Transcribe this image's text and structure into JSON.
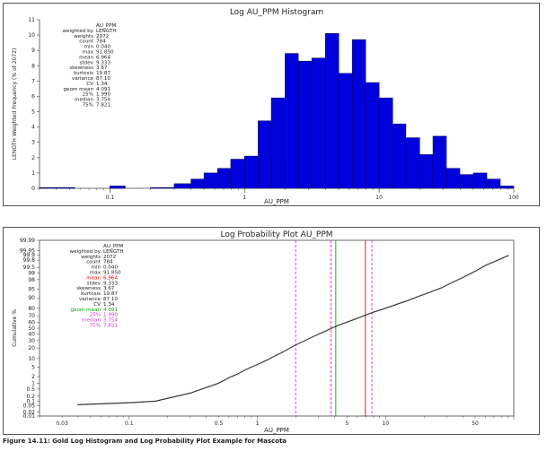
{
  "caption": "Figure 14.11: Gold Log Histogram and Log Probability Plot Example for Mascota",
  "colors": {
    "bar": "#0000dd",
    "bar_edge": "#000055",
    "mean": "#dd0000",
    "geom_mean": "#00aa00",
    "quartile": "#cc33cc",
    "points": "#222222"
  },
  "chart_data": [
    {
      "type": "bar",
      "title": "Log AU_PPM Histogram",
      "xlabel": "AU_PPM",
      "ylabel": "LENGTH Weighted Frequency (% of 2072)",
      "x_scale": "log",
      "xlim": [
        0.03,
        100
      ],
      "ylim": [
        0,
        11
      ],
      "yticks": [
        "0",
        "1",
        "2",
        "3",
        "4",
        "5",
        "6",
        "7",
        "8",
        "9",
        "10",
        "11"
      ],
      "xticks": [
        "0.1",
        "1",
        "10",
        "100"
      ],
      "bins": [
        {
          "lo": 0.03,
          "hi": 0.055,
          "value": 0.05
        },
        {
          "lo": 0.055,
          "hi": 0.1,
          "value": 0.0
        },
        {
          "lo": 0.1,
          "hi": 0.13,
          "value": 0.15
        },
        {
          "lo": 0.13,
          "hi": 0.2,
          "value": 0.0
        },
        {
          "lo": 0.2,
          "hi": 0.3,
          "value": 0.05
        },
        {
          "lo": 0.3,
          "hi": 0.4,
          "value": 0.3
        },
        {
          "lo": 0.4,
          "hi": 0.5,
          "value": 0.6
        },
        {
          "lo": 0.5,
          "hi": 0.63,
          "value": 1.0
        },
        {
          "lo": 0.63,
          "hi": 0.79,
          "value": 1.3
        },
        {
          "lo": 0.79,
          "hi": 1.0,
          "value": 1.9
        },
        {
          "lo": 1.0,
          "hi": 1.26,
          "value": 2.1
        },
        {
          "lo": 1.26,
          "hi": 1.58,
          "value": 4.4
        },
        {
          "lo": 1.58,
          "hi": 2.0,
          "value": 5.9
        },
        {
          "lo": 2.0,
          "hi": 2.51,
          "value": 8.8
        },
        {
          "lo": 2.51,
          "hi": 3.16,
          "value": 8.3
        },
        {
          "lo": 3.16,
          "hi": 3.98,
          "value": 8.5
        },
        {
          "lo": 3.98,
          "hi": 5.01,
          "value": 10.1
        },
        {
          "lo": 5.01,
          "hi": 6.31,
          "value": 7.5
        },
        {
          "lo": 6.31,
          "hi": 7.94,
          "value": 9.7
        },
        {
          "lo": 7.94,
          "hi": 10.0,
          "value": 6.9
        },
        {
          "lo": 10.0,
          "hi": 12.6,
          "value": 5.9
        },
        {
          "lo": 12.6,
          "hi": 15.8,
          "value": 4.2
        },
        {
          "lo": 15.8,
          "hi": 20.0,
          "value": 3.3
        },
        {
          "lo": 20.0,
          "hi": 25.1,
          "value": 2.2
        },
        {
          "lo": 25.1,
          "hi": 31.6,
          "value": 3.4
        },
        {
          "lo": 31.6,
          "hi": 39.8,
          "value": 1.3
        },
        {
          "lo": 39.8,
          "hi": 50.1,
          "value": 0.9
        },
        {
          "lo": 50.1,
          "hi": 63.1,
          "value": 1.0
        },
        {
          "lo": 63.1,
          "hi": 79.4,
          "value": 0.6
        },
        {
          "lo": 79.4,
          "hi": 100.0,
          "value": 0.15
        }
      ],
      "stats": [
        [
          "",
          "AU_PPM"
        ],
        [
          "weighted by",
          "LENGTH"
        ],
        [
          "weights",
          "2072"
        ],
        [
          "count",
          "784"
        ],
        [
          "min",
          "0.040"
        ],
        [
          "max",
          "91.850"
        ],
        [
          "mean",
          "6.964"
        ],
        [
          "stdev",
          "9.333"
        ],
        [
          "skewness",
          "3.67"
        ],
        [
          "kurtosis",
          "19.87"
        ],
        [
          "variance",
          "87.10"
        ],
        [
          "CV",
          "1.34"
        ],
        [
          "geom mean",
          "4.091"
        ],
        [
          "25%",
          "1.990"
        ],
        [
          "median",
          "3.754"
        ],
        [
          "75%",
          "7.821"
        ]
      ]
    },
    {
      "type": "scatter",
      "title": "Log Probability Plot AU_PPM",
      "xlabel": "AU_PPM",
      "ylabel": "Cumulative %",
      "x_scale": "log",
      "y_scale": "probability",
      "xlim": [
        0.02,
        100
      ],
      "xticks": [
        "0.03",
        "0.1",
        "0.5",
        "1",
        "5",
        "10",
        "50"
      ],
      "yticks": [
        "0.01",
        "0.02",
        "0.05",
        "0.1",
        "0.2",
        "0.5",
        "1",
        "2",
        "5",
        "10",
        "20",
        "30",
        "40",
        "50",
        "60",
        "70",
        "80",
        "90",
        "95",
        "98",
        "99",
        "99.5",
        "99.8",
        "99.9",
        "99.95",
        "99.99"
      ],
      "points": [
        [
          0.04,
          0.06
        ],
        [
          0.1,
          0.08
        ],
        [
          0.16,
          0.1
        ],
        [
          0.3,
          0.3
        ],
        [
          0.4,
          0.6
        ],
        [
          0.5,
          1
        ],
        [
          0.6,
          1.8
        ],
        [
          0.7,
          2.6
        ],
        [
          0.8,
          3.8
        ],
        [
          0.9,
          5
        ],
        [
          1.0,
          6.2
        ],
        [
          1.2,
          9
        ],
        [
          1.4,
          12.5
        ],
        [
          1.6,
          16
        ],
        [
          1.8,
          20
        ],
        [
          2.0,
          24
        ],
        [
          2.3,
          29
        ],
        [
          2.6,
          34
        ],
        [
          3.0,
          40
        ],
        [
          3.4,
          45
        ],
        [
          3.8,
          50
        ],
        [
          4.3,
          55
        ],
        [
          5.0,
          60
        ],
        [
          6.0,
          66
        ],
        [
          7.0,
          71
        ],
        [
          8.0,
          75
        ],
        [
          10,
          80
        ],
        [
          12,
          84
        ],
        [
          15,
          88
        ],
        [
          18,
          91
        ],
        [
          22,
          93.5
        ],
        [
          27,
          95.5
        ],
        [
          33,
          97.3
        ],
        [
          40,
          98.4
        ],
        [
          50,
          99.2
        ],
        [
          60,
          99.6
        ],
        [
          75,
          99.8
        ],
        [
          92,
          99.9
        ]
      ],
      "reference_lines": [
        {
          "name": "25%",
          "value": 1.99,
          "color": "#cc33cc",
          "dash": true
        },
        {
          "name": "median",
          "value": 3.754,
          "color": "#cc33cc",
          "dash": true
        },
        {
          "name": "geom mean",
          "value": 4.091,
          "color": "#00aa00",
          "dash": false
        },
        {
          "name": "mean",
          "value": 6.964,
          "color": "#dd0000",
          "dash": false
        },
        {
          "name": "75%",
          "value": 7.821,
          "color": "#cc33cc",
          "dash": true
        }
      ],
      "stats": [
        {
          "label": "",
          "value": "AU_PPM",
          "color": "#222222"
        },
        {
          "label": "weighted by",
          "value": "LENGTH",
          "color": "#222222"
        },
        {
          "label": "weights",
          "value": "2072",
          "color": "#222222"
        },
        {
          "label": "count",
          "value": "784",
          "color": "#222222"
        },
        {
          "label": "min",
          "value": "0.040",
          "color": "#222222"
        },
        {
          "label": "max",
          "value": "91.850",
          "color": "#222222"
        },
        {
          "label": "mean",
          "value": "6.964",
          "color": "#dd0000"
        },
        {
          "label": "stdev",
          "value": "9.333",
          "color": "#222222"
        },
        {
          "label": "skewness",
          "value": "3.67",
          "color": "#222222"
        },
        {
          "label": "kurtosis",
          "value": "19.87",
          "color": "#222222"
        },
        {
          "label": "variance",
          "value": "87.10",
          "color": "#222222"
        },
        {
          "label": "CV",
          "value": "1.34",
          "color": "#222222"
        },
        {
          "label": "geom mean",
          "value": "4.091",
          "color": "#00aa00"
        },
        {
          "label": "25%",
          "value": "1.990",
          "color": "#cc33cc"
        },
        {
          "label": "median",
          "value": "3.754",
          "color": "#cc33cc"
        },
        {
          "label": "75%",
          "value": "7.821",
          "color": "#cc33cc"
        }
      ]
    }
  ]
}
